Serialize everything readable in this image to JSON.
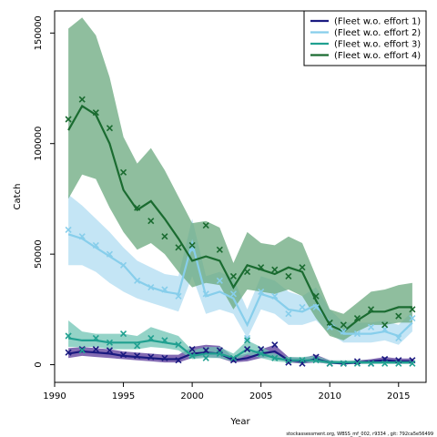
{
  "chart_data": {
    "type": "line",
    "xlabel": "Year",
    "ylabel": "Catch",
    "xlim": [
      1990,
      2017
    ],
    "ylim": [
      -8000,
      160000
    ],
    "xticks": [
      1990,
      1995,
      2000,
      2005,
      2010,
      2015
    ],
    "yticks": [
      0,
      50000,
      100000,
      150000
    ],
    "grid": false,
    "legend_position": "top-right",
    "footer": "stockassessment.org, WBSS_mf_002, r9334 , git: 792ca5e56499",
    "x": [
      1991,
      1992,
      1993,
      1994,
      1995,
      1996,
      1997,
      1998,
      1999,
      2000,
      2001,
      2002,
      2003,
      2004,
      2005,
      2006,
      2007,
      2008,
      2009,
      2010,
      2011,
      2012,
      2013,
      2014,
      2015,
      2016
    ],
    "series": [
      {
        "name": "(Fleet w.o. effort 1)",
        "color": "#1a1a80",
        "band_color": "#5a3a9a",
        "fit": [
          5000,
          6000,
          5500,
          5000,
          4000,
          3500,
          3000,
          2500,
          2500,
          5000,
          5500,
          5000,
          2000,
          3000,
          5000,
          6000,
          2000,
          1500,
          2500,
          1000,
          500,
          1000,
          1500,
          2000,
          1500,
          1500
        ],
        "lower": [
          3000,
          4000,
          3500,
          3000,
          2500,
          2000,
          1500,
          1000,
          1000,
          3000,
          3500,
          3000,
          1000,
          1500,
          3000,
          3500,
          1000,
          500,
          1000,
          300,
          100,
          300,
          500,
          700,
          500,
          500
        ],
        "upper": [
          7500,
          8000,
          7500,
          7000,
          6000,
          5500,
          5000,
          4500,
          4500,
          8000,
          9000,
          8500,
          3500,
          5000,
          7000,
          9000,
          3500,
          3000,
          4500,
          2000,
          1200,
          2000,
          2500,
          3500,
          2800,
          2800
        ],
        "obs": [
          5500,
          7000,
          7000,
          6500,
          4500,
          4000,
          3500,
          3000,
          2000,
          7000,
          6500,
          6500,
          2000,
          7000,
          7000,
          9000,
          1000,
          500,
          3500,
          500,
          500,
          1500,
          500,
          2500,
          2000,
          2000
        ]
      },
      {
        "name": "(Fleet w.o. effort 2)",
        "color": "#87ceeb",
        "band_color": "#b0dcf2",
        "fit": [
          59000,
          57000,
          53000,
          49000,
          45000,
          38000,
          35000,
          33000,
          32000,
          55000,
          31000,
          33000,
          30000,
          18000,
          32000,
          30000,
          25000,
          24000,
          27000,
          19000,
          14000,
          14000,
          14000,
          15000,
          13000,
          19000
        ],
        "lower": [
          45000,
          45000,
          42000,
          37000,
          33000,
          30000,
          28000,
          26000,
          24000,
          40000,
          23000,
          25000,
          23000,
          12000,
          25000,
          23000,
          18000,
          18000,
          20000,
          14000,
          10000,
          10000,
          10000,
          11000,
          9000,
          15000
        ],
        "upper": [
          77000,
          72000,
          66000,
          60000,
          53000,
          47000,
          44000,
          41000,
          40000,
          66000,
          40000,
          42000,
          39000,
          25000,
          40000,
          38000,
          33000,
          31000,
          35000,
          25000,
          19000,
          19000,
          19000,
          20000,
          18000,
          24000
        ],
        "obs": [
          61000,
          58000,
          54000,
          50000,
          45000,
          38000,
          35000,
          34000,
          31000,
          52000,
          32000,
          38000,
          32000,
          12000,
          33000,
          31000,
          23000,
          26000,
          26000,
          17000,
          15000,
          14000,
          17000,
          16000,
          12000,
          21000
        ]
      },
      {
        "name": "(Fleet w.o. effort 3)",
        "color": "#20a090",
        "band_color": "#70c4b4",
        "fit": [
          12000,
          11000,
          11000,
          10000,
          10000,
          10000,
          11000,
          10000,
          9000,
          4000,
          5000,
          5000,
          3000,
          7000,
          5000,
          3000,
          2000,
          2000,
          2000,
          1000,
          1000,
          1000,
          1000,
          1000,
          1000,
          1000
        ],
        "lower": [
          8000,
          8000,
          8000,
          7000,
          7000,
          7000,
          8000,
          7500,
          6500,
          2500,
          3000,
          3000,
          1500,
          4500,
          3000,
          1500,
          1000,
          1000,
          1000,
          300,
          300,
          300,
          300,
          300,
          300,
          300
        ],
        "upper": [
          20000,
          15000,
          14000,
          14000,
          14000,
          13000,
          17000,
          15000,
          13000,
          6500,
          8000,
          8000,
          5000,
          11000,
          8000,
          5000,
          3500,
          3500,
          4000,
          2000,
          2000,
          2000,
          2000,
          2000,
          2000,
          2000
        ],
        "obs": [
          13000,
          6500,
          12000,
          10000,
          14000,
          8500,
          12000,
          11000,
          9000,
          4000,
          3000,
          5000,
          3000,
          11000,
          5000,
          3000,
          2000,
          2000,
          2000,
          500,
          500,
          500,
          500,
          500,
          500,
          500
        ]
      },
      {
        "name": "(Fleet w.o. effort 4)",
        "color": "#1a6b30",
        "band_color": "#6aa87e",
        "fit": [
          106000,
          117000,
          113000,
          100000,
          79000,
          70000,
          74000,
          66000,
          57000,
          47000,
          49000,
          47000,
          35000,
          45000,
          43000,
          41000,
          44000,
          42000,
          29000,
          18000,
          15000,
          20000,
          24000,
          24000,
          26000,
          26000
        ],
        "lower": [
          75000,
          86000,
          84000,
          71000,
          60000,
          52000,
          55000,
          50000,
          42000,
          35000,
          37000,
          36000,
          25000,
          34000,
          33000,
          32000,
          34000,
          31000,
          21000,
          13000,
          11000,
          15000,
          18000,
          18000,
          19000,
          19000
        ],
        "upper": [
          152000,
          157000,
          149000,
          130000,
          103000,
          91000,
          98000,
          88000,
          76000,
          64000,
          65000,
          62000,
          46000,
          60000,
          55000,
          54000,
          58000,
          55000,
          40000,
          25000,
          23000,
          28000,
          33000,
          34000,
          36000,
          37000
        ],
        "obs": [
          111000,
          120000,
          114000,
          107000,
          87000,
          71000,
          65000,
          58000,
          53000,
          54000,
          63000,
          52000,
          40000,
          42000,
          44000,
          43000,
          40000,
          44000,
          31000,
          19000,
          18000,
          21000,
          25000,
          18000,
          22000,
          25000
        ]
      }
    ]
  }
}
